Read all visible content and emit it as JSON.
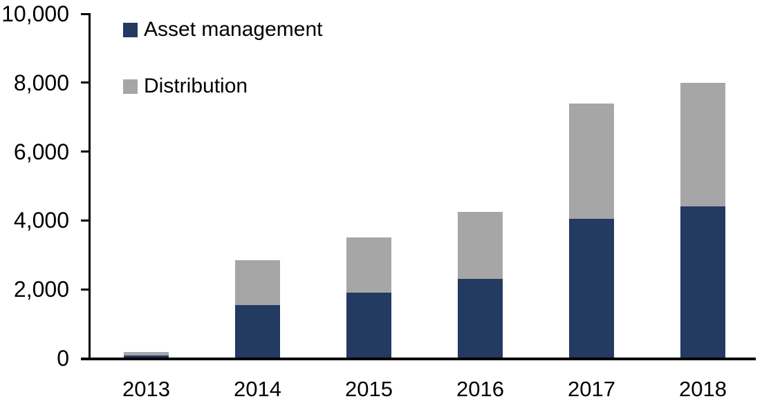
{
  "chart_data": {
    "type": "bar",
    "stacked": true,
    "title": "",
    "xlabel": "",
    "ylabel": "",
    "categories": [
      "2013",
      "2014",
      "2015",
      "2016",
      "2017",
      "2018"
    ],
    "series": [
      {
        "name": "Asset management",
        "color": "#233A61",
        "values": [
          75,
          1550,
          1900,
          2300,
          4050,
          4400
        ]
      },
      {
        "name": "Distribution",
        "color": "#A6A6A6",
        "values": [
          110,
          1300,
          1600,
          1950,
          3350,
          3600
        ]
      }
    ],
    "totals": [
      185,
      2850,
      3500,
      4250,
      7400,
      8000
    ],
    "ylim": [
      0,
      10000
    ],
    "yticks": [
      0,
      2000,
      4000,
      6000,
      8000,
      10000
    ],
    "ytick_labels": [
      "0",
      "2,000",
      "4,000",
      "6,000",
      "8,000",
      "10,000"
    ],
    "grid": false,
    "legend_position": "top-left",
    "axis_color": "#000000",
    "background_color": "#FFFFFF"
  }
}
